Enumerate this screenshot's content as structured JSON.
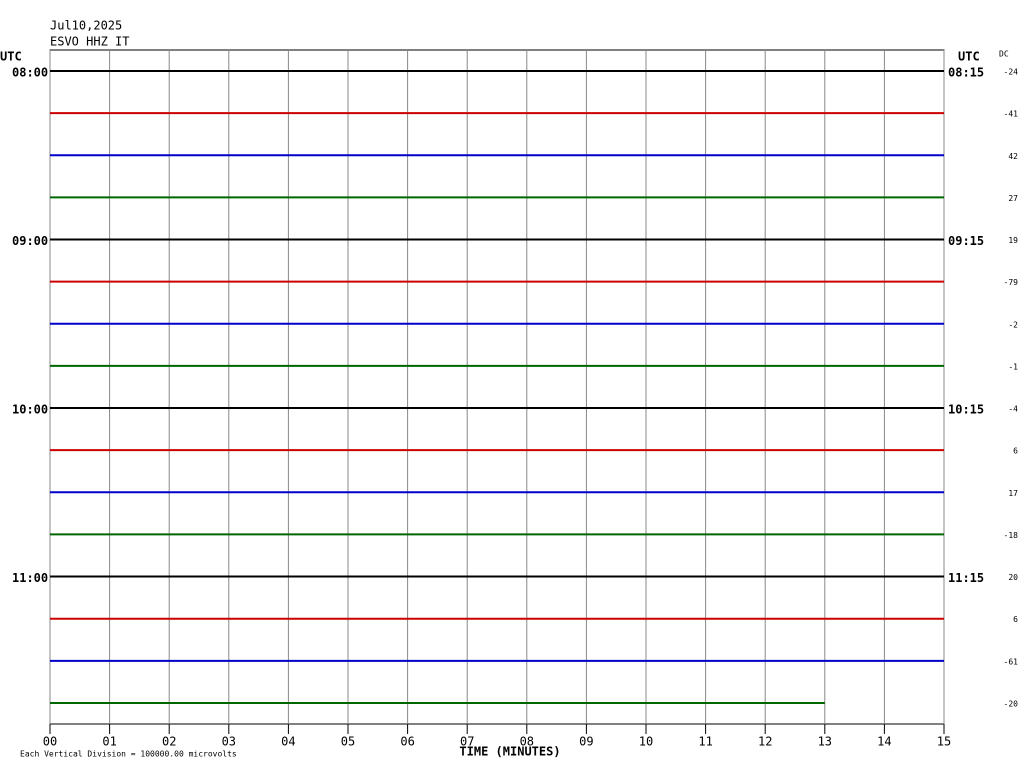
{
  "chart_data": {
    "type": "helicorder",
    "title": "Jul10,2025",
    "subtitle": "ESVO HHZ IT",
    "left_axis_label": "UTC",
    "right_axis_label": "UTC",
    "dc_label": "DC",
    "xlabel": "TIME (MINUTES)",
    "footnote": "Each Vertical Division = 100000.00 microvolts",
    "xlim": [
      0,
      15
    ],
    "xticks": [
      {
        "value": 0,
        "label": "00"
      },
      {
        "value": 1,
        "label": "01"
      },
      {
        "value": 2,
        "label": "02"
      },
      {
        "value": 3,
        "label": "03"
      },
      {
        "value": 4,
        "label": "04"
      },
      {
        "value": 5,
        "label": "05"
      },
      {
        "value": 6,
        "label": "06"
      },
      {
        "value": 7,
        "label": "07"
      },
      {
        "value": 8,
        "label": "08"
      },
      {
        "value": 9,
        "label": "09"
      },
      {
        "value": 10,
        "label": "10"
      },
      {
        "value": 11,
        "label": "11"
      },
      {
        "value": 12,
        "label": "12"
      },
      {
        "value": 13,
        "label": "13"
      },
      {
        "value": 14,
        "label": "14"
      },
      {
        "value": 15,
        "label": "15"
      }
    ],
    "grid": true,
    "colors": [
      "#000000",
      "#cc0000",
      "#0000cc",
      "#006600"
    ],
    "left_labels": [
      "08:00",
      null,
      null,
      null,
      "09:00",
      null,
      null,
      null,
      "10:00",
      null,
      null,
      null,
      "11:00",
      null,
      null,
      null
    ],
    "right_labels": [
      "08:15",
      null,
      null,
      null,
      "09:15",
      null,
      null,
      null,
      "10:15",
      null,
      null,
      null,
      "11:15",
      null,
      null,
      null
    ],
    "dc": [
      -24,
      -41,
      42,
      27,
      19,
      -79,
      -2,
      -1,
      -4,
      6,
      17,
      -18,
      20,
      6,
      -61,
      -20
    ],
    "trace_end": [
      15,
      15,
      15,
      15,
      15,
      15,
      15,
      15,
      15,
      15,
      15,
      15,
      15,
      15,
      15,
      13
    ]
  }
}
